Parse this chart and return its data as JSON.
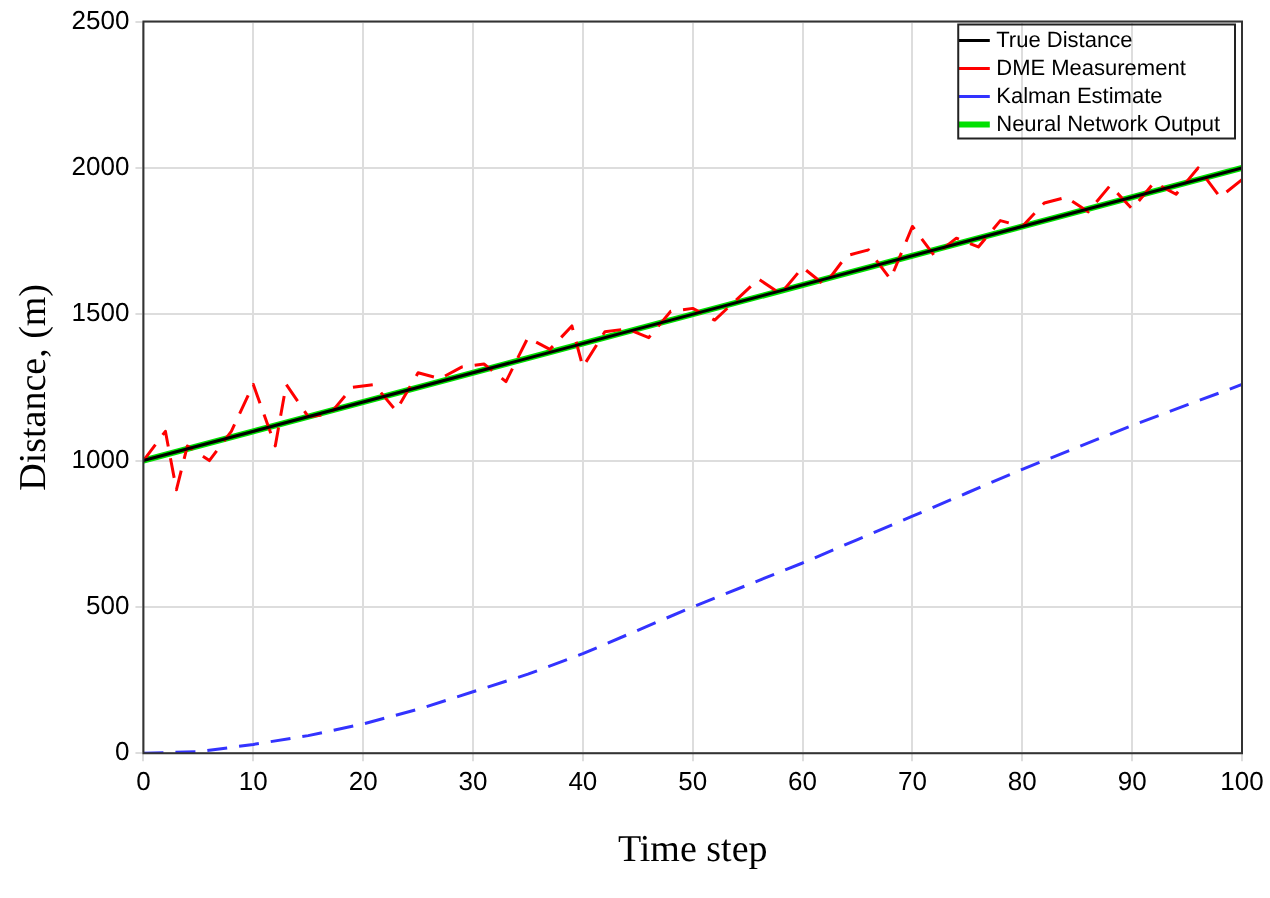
{
  "chart_data": {
    "type": "line",
    "xlabel": "Time step",
    "ylabel": "Distance, (m)",
    "xlim": [
      0,
      100
    ],
    "xticks": [
      0,
      10,
      20,
      30,
      40,
      50,
      60,
      70,
      80,
      90,
      100
    ],
    "ylim": [
      0,
      2500
    ],
    "yticks": [
      0,
      500,
      1000,
      1500,
      2000,
      2500
    ],
    "grid": true,
    "legend": "top right",
    "marker": "none",
    "series": [
      {
        "name": "True Distance",
        "color": "#000000",
        "line_style": "solid",
        "x": [
          0,
          100
        ],
        "values": [
          1000,
          2000
        ]
      },
      {
        "name": "DME Measurement",
        "color": "#ff0000",
        "line_style": "dashed",
        "x": [
          0,
          2,
          3,
          4,
          6,
          8,
          10,
          12,
          13,
          15,
          17,
          19,
          21,
          23,
          25,
          27,
          29,
          31,
          33,
          35,
          37,
          39,
          40,
          42,
          44,
          46,
          48,
          50,
          52,
          54,
          56,
          58,
          60,
          62,
          64,
          66,
          68,
          70,
          72,
          74,
          76,
          78,
          80,
          82,
          84,
          86,
          88,
          90,
          92,
          94,
          96,
          98,
          100
        ],
        "values": [
          1000,
          1100,
          900,
          1050,
          1000,
          1100,
          1260,
          1050,
          1260,
          1150,
          1160,
          1250,
          1260,
          1170,
          1300,
          1280,
          1320,
          1330,
          1270,
          1420,
          1380,
          1460,
          1320,
          1440,
          1450,
          1420,
          1510,
          1520,
          1480,
          1550,
          1620,
          1570,
          1660,
          1600,
          1700,
          1720,
          1620,
          1800,
          1700,
          1760,
          1730,
          1820,
          1800,
          1880,
          1900,
          1850,
          1940,
          1860,
          1950,
          1910,
          2000,
          1900,
          1960
        ]
      },
      {
        "name": "Kalman Estimate",
        "color": "#3333ff",
        "line_style": "dashed",
        "x": [
          0,
          5,
          10,
          15,
          20,
          25,
          30,
          35,
          40,
          45,
          50,
          55,
          60,
          65,
          70,
          75,
          80,
          85,
          90,
          95,
          100
        ],
        "values": [
          0,
          5,
          30,
          60,
          100,
          150,
          210,
          270,
          340,
          420,
          500,
          575,
          650,
          730,
          810,
          890,
          970,
          1045,
          1120,
          1190,
          1260
        ]
      },
      {
        "name": "Neural Network Output",
        "color": "#00e000",
        "line_style": "solid",
        "x": [
          0,
          100
        ],
        "values": [
          1000,
          2000
        ]
      }
    ]
  }
}
